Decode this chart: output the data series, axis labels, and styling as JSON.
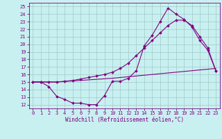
{
  "xlabel": "Windchill (Refroidissement éolien,°C)",
  "bg_color": "#c8f0f0",
  "line_color": "#800080",
  "grid_color": "#a0c8c8",
  "xlim": [
    -0.5,
    23.5
  ],
  "ylim": [
    11.5,
    25.5
  ],
  "xticks": [
    0,
    1,
    2,
    3,
    4,
    5,
    6,
    7,
    8,
    9,
    10,
    11,
    12,
    13,
    14,
    15,
    16,
    17,
    18,
    19,
    20,
    21,
    22,
    23
  ],
  "yticks": [
    12,
    13,
    14,
    15,
    16,
    17,
    18,
    19,
    20,
    21,
    22,
    23,
    24,
    25
  ],
  "line1_x": [
    0,
    1,
    2,
    3,
    4,
    5,
    6,
    7,
    8,
    9,
    10,
    11,
    12,
    13,
    14,
    15,
    16,
    17,
    18,
    19,
    20,
    21,
    22,
    23
  ],
  "line1_y": [
    15,
    15,
    14.4,
    13.1,
    12.7,
    12.2,
    12.2,
    12.0,
    12.0,
    13.2,
    15.1,
    15.1,
    15.5,
    16.5,
    19.8,
    21.2,
    23.0,
    24.8,
    24.0,
    23.3,
    22.3,
    20.5,
    19.2,
    16.5
  ],
  "line2_x": [
    0,
    1,
    2,
    3,
    10,
    15,
    20,
    23
  ],
  "line2_y": [
    15,
    15,
    15,
    15,
    15.5,
    16.0,
    16.5,
    16.8
  ],
  "line3_x": [
    0,
    1,
    2,
    3,
    4,
    5,
    6,
    7,
    8,
    9,
    10,
    11,
    12,
    13,
    14,
    15,
    16,
    17,
    18,
    19,
    20,
    21,
    22,
    23
  ],
  "line3_y": [
    15,
    15,
    15,
    15,
    15.1,
    15.2,
    15.4,
    15.6,
    15.8,
    16.0,
    16.3,
    16.8,
    17.5,
    18.5,
    19.5,
    20.5,
    21.5,
    22.5,
    23.2,
    23.2,
    22.5,
    21.0,
    19.5,
    16.5
  ],
  "xlabel_fontsize": 5.5,
  "tick_fontsize": 5,
  "linewidth": 0.8,
  "markersize": 2.0
}
